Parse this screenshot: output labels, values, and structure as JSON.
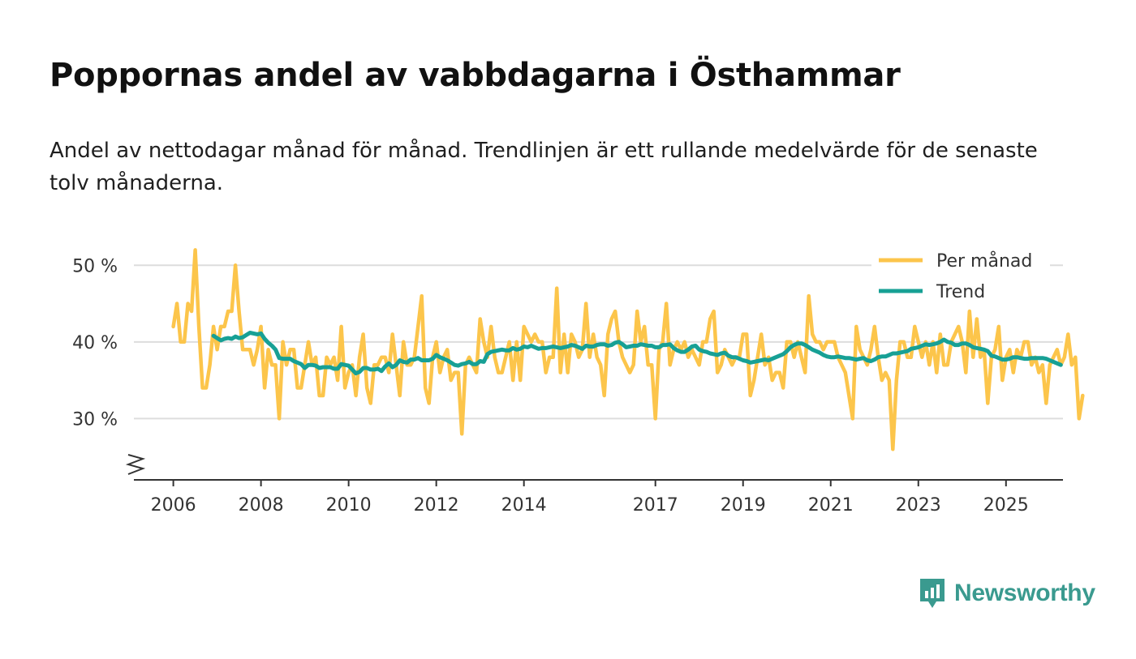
{
  "title": "Poppornas andel av vabbdagarna i Östhammar",
  "subtitle": "Andel av nettodagar månad för månad. Trendlinjen är ett rullande medelvärde för de senaste tolv månaderna.",
  "brand": {
    "name": "Newsworthy",
    "color": "#3a9a8f"
  },
  "colors": {
    "monthly": "#fcc54b",
    "trend": "#17a095",
    "grid": "#dddddd",
    "axis": "#333333"
  },
  "chart_data": {
    "type": "line",
    "x_start": 2006.0,
    "x_step": 0.0833333,
    "xlim": [
      2005.1,
      2026.3
    ],
    "ylim": [
      22,
      55
    ],
    "y_ticks": [
      30,
      40,
      50
    ],
    "y_tick_labels": [
      "30 %",
      "40 %",
      "50 %"
    ],
    "x_ticks": [
      2006,
      2008,
      2010,
      2012,
      2014,
      2017,
      2019,
      2021,
      2023,
      2025
    ],
    "x_tick_labels": [
      "2006",
      "2008",
      "2010",
      "2012",
      "2014",
      "2017",
      "2019",
      "2021",
      "2023",
      "2025"
    ],
    "legend": {
      "position": "top-right",
      "labels": [
        "Per månad",
        "Trend"
      ]
    },
    "series": [
      {
        "name": "Per månad",
        "values": [
          42,
          45,
          40,
          40,
          45,
          44,
          52,
          42,
          34,
          34,
          37,
          42,
          39,
          42,
          42,
          44,
          44,
          50,
          44,
          39,
          39,
          39,
          37,
          39,
          42,
          34,
          39,
          37,
          37,
          30,
          40,
          37,
          39,
          39,
          34,
          34,
          37,
          40,
          37,
          38,
          33,
          33,
          38,
          37,
          38,
          35,
          42,
          34,
          36,
          37,
          33,
          38,
          41,
          34,
          32,
          37,
          37,
          38,
          38,
          36,
          41,
          37,
          33,
          40,
          37,
          37,
          38,
          42,
          46,
          34,
          32,
          38,
          40,
          36,
          38,
          39,
          35,
          36,
          36,
          28,
          37,
          38,
          37,
          36,
          43,
          40,
          38,
          42,
          38,
          36,
          36,
          38,
          40,
          35,
          40,
          35,
          42,
          41,
          40,
          41,
          40,
          40,
          36,
          38,
          38,
          47,
          36,
          41,
          36,
          41,
          40,
          38,
          39,
          45,
          38,
          41,
          38,
          37,
          33,
          41,
          43,
          44,
          40,
          38,
          37,
          36,
          37,
          44,
          40,
          42,
          37,
          37,
          30,
          39,
          40,
          45,
          37,
          39,
          40,
          39,
          40,
          38,
          39,
          38,
          37,
          40,
          40,
          43,
          44,
          36,
          37,
          39,
          38,
          37,
          38,
          38,
          41,
          41,
          33,
          35,
          38,
          41,
          37,
          38,
          35,
          36,
          36,
          34,
          40,
          40,
          38,
          40,
          38,
          36,
          46,
          41,
          40,
          40,
          39,
          40,
          40,
          40,
          38,
          37,
          36,
          33,
          30,
          42,
          39,
          38,
          37,
          39,
          42,
          38,
          35,
          36,
          35,
          26,
          35,
          40,
          40,
          38,
          38,
          42,
          40,
          38,
          40,
          37,
          40,
          36,
          41,
          37,
          37,
          40,
          41,
          42,
          40,
          36,
          44,
          38,
          43,
          38,
          39,
          32,
          38,
          39,
          42,
          35,
          38,
          39,
          36,
          39,
          38,
          40,
          40,
          37,
          38,
          36,
          37,
          32,
          37,
          38,
          39,
          37,
          38,
          41,
          37,
          38,
          30,
          33
        ]
      },
      {
        "name": "Trend",
        "x_start": 2006.9167,
        "values": [
          40.8,
          40.5,
          40.2,
          40.4,
          40.5,
          40.4,
          40.7,
          40.5,
          40.6,
          40.9,
          41.2,
          41.1,
          41.0,
          41.1,
          40.4,
          39.9,
          39.5,
          39.0,
          37.9,
          37.8,
          37.8,
          37.8,
          37.5,
          37.3,
          37.1,
          36.6,
          37.0,
          37.0,
          36.9,
          36.6,
          36.7,
          36.7,
          36.7,
          36.5,
          36.5,
          37.1,
          37.0,
          36.9,
          36.4,
          35.9,
          36.1,
          36.6,
          36.6,
          36.4,
          36.4,
          36.5,
          36.2,
          36.8,
          37.2,
          36.7,
          37.0,
          37.6,
          37.4,
          37.3,
          37.7,
          37.7,
          37.9,
          37.6,
          37.6,
          37.6,
          37.8,
          38.3,
          38.0,
          37.8,
          37.6,
          37.3,
          37.0,
          36.9,
          37.1,
          37.2,
          37.4,
          37.1,
          37.1,
          37.5,
          37.4,
          38.4,
          38.7,
          38.8,
          38.9,
          39.0,
          38.9,
          38.9,
          39.2,
          39.0,
          39.1,
          39.4,
          39.3,
          39.5,
          39.3,
          39.1,
          39.2,
          39.2,
          39.3,
          39.4,
          39.3,
          39.2,
          39.3,
          39.4,
          39.6,
          39.5,
          39.3,
          39.1,
          39.5,
          39.4,
          39.4,
          39.6,
          39.7,
          39.7,
          39.5,
          39.6,
          39.9,
          40.0,
          39.7,
          39.3,
          39.4,
          39.5,
          39.5,
          39.7,
          39.6,
          39.5,
          39.5,
          39.3,
          39.3,
          39.6,
          39.6,
          39.7,
          39.2,
          38.9,
          38.7,
          38.7,
          39.0,
          39.4,
          39.5,
          39.0,
          38.8,
          38.7,
          38.5,
          38.4,
          38.3,
          38.5,
          38.6,
          38.2,
          38.0,
          38.0,
          37.8,
          37.6,
          37.5,
          37.3,
          37.4,
          37.5,
          37.6,
          37.7,
          37.6,
          37.8,
          38.0,
          38.2,
          38.4,
          38.8,
          39.3,
          39.6,
          39.8,
          39.8,
          39.6,
          39.3,
          39.0,
          38.8,
          38.6,
          38.3,
          38.1,
          38.0,
          38.0,
          38.1,
          38.0,
          37.9,
          37.9,
          37.8,
          37.7,
          37.8,
          37.9,
          37.6,
          37.5,
          37.7,
          38.0,
          38.1,
          38.1,
          38.3,
          38.5,
          38.5,
          38.6,
          38.7,
          38.8,
          39.1,
          39.2,
          39.3,
          39.5,
          39.7,
          39.6,
          39.7,
          39.8,
          40.0,
          40.3,
          40.0,
          39.9,
          39.6,
          39.6,
          39.8,
          39.8,
          39.6,
          39.3,
          39.2,
          39.1,
          39.0,
          38.8,
          38.2,
          38.1,
          37.9,
          37.7,
          37.7,
          37.8,
          38.0,
          38.0,
          37.9,
          37.8,
          37.8,
          37.9,
          37.9,
          37.9,
          37.9,
          37.8,
          37.6,
          37.4,
          37.2,
          37.0
        ]
      }
    ]
  }
}
